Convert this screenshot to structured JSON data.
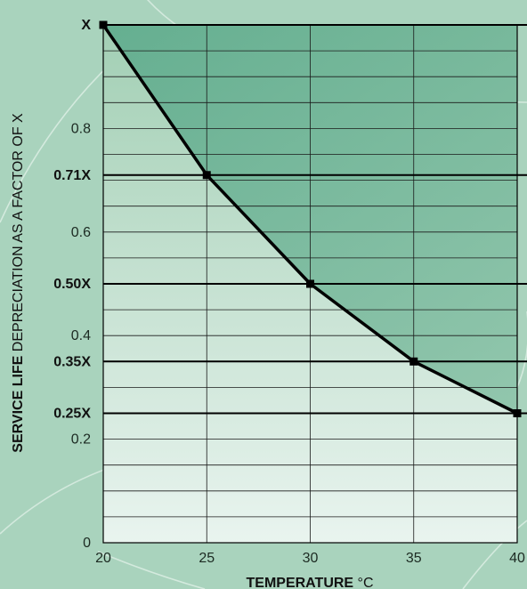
{
  "chart_data": {
    "type": "line",
    "xlabel_bold": "TEMPERATURE",
    "xlabel_rest": " °C",
    "ylabel_bold": "SERVICE LIFE",
    "ylabel_rest": " DEPRECIATION AS A FACTOR OF X",
    "xlim": [
      20,
      40
    ],
    "ylim": [
      0,
      1
    ],
    "x_ticks": [
      "20",
      "25",
      "30",
      "35",
      "40"
    ],
    "y_ticks": [
      {
        "value": 0,
        "label": "0"
      },
      {
        "value": 0.2,
        "label": "0.2"
      },
      {
        "value": 0.4,
        "label": "0.4"
      },
      {
        "value": 0.6,
        "label": "0.6"
      },
      {
        "value": 0.8,
        "label": "0.8"
      }
    ],
    "reference_lines": [
      {
        "value": 1.0,
        "label": "X"
      },
      {
        "value": 0.71,
        "label": "0.71X"
      },
      {
        "value": 0.5,
        "label": "0.50X"
      },
      {
        "value": 0.35,
        "label": "0.35X"
      },
      {
        "value": 0.25,
        "label": "0.25X"
      }
    ],
    "series": [
      {
        "x": [
          20,
          25,
          30,
          35,
          40
        ],
        "y": [
          1.0,
          0.71,
          0.5,
          0.35,
          0.25
        ]
      }
    ],
    "grid": true,
    "colors": {
      "background": "#a9d3bd",
      "plot_top": "#a2cfb4",
      "plot_bottom": "#e9f4ef",
      "fill_area": "#5aa98a",
      "line": "#000000"
    }
  }
}
